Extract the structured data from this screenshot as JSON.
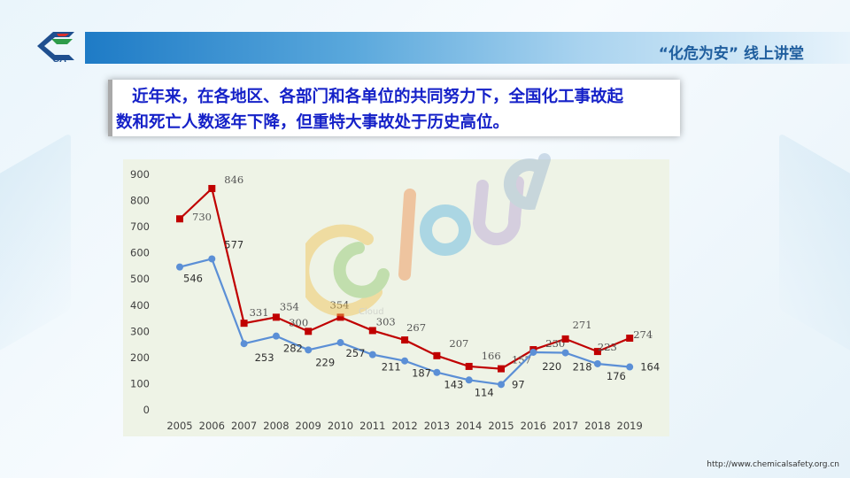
{
  "header": {
    "title": "“化危为安” 线上讲堂",
    "logo_text": "SA",
    "accent_color": "#1e7bc6"
  },
  "note": {
    "line1": "近年来，在各地区、各部门和各单位的共同努力下，全国化工事故起",
    "line2": "数和死亡人数逐年下降，但重特大事故处于历史高位。"
  },
  "watermark": {
    "text": "Cloud"
  },
  "footer": {
    "url": "http://www.chemicalsafety.org.cn"
  },
  "chart_data": {
    "type": "line",
    "x": [
      "2005",
      "2006",
      "2007",
      "2008",
      "2009",
      "2010",
      "2011",
      "2012",
      "2013",
      "2014",
      "2015",
      "2016",
      "2017",
      "2018",
      "2019"
    ],
    "series": [
      {
        "color": "#c00000",
        "marker": "square",
        "values": [
          730,
          846,
          331,
          354,
          300,
          354,
          303,
          267,
          207,
          166,
          157,
          230,
          271,
          223,
          274
        ]
      },
      {
        "color": "#5b8fd6",
        "marker": "circle",
        "values": [
          546,
          577,
          253,
          282,
          229,
          257,
          211,
          187,
          143,
          114,
          97,
          220,
          218,
          176,
          164
        ]
      }
    ],
    "ylim": [
      0,
      900
    ],
    "yticks": [
      0,
      100,
      200,
      300,
      400,
      500,
      600,
      700,
      800,
      900
    ],
    "grid": false,
    "legend": "none"
  }
}
